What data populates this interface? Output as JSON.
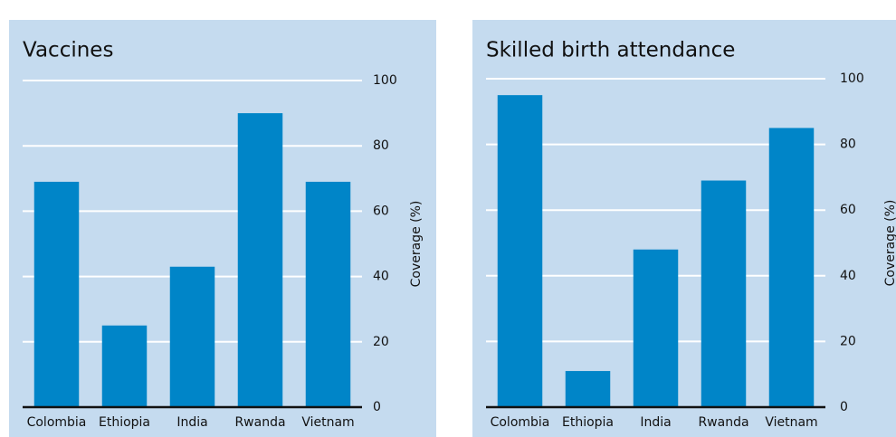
{
  "chart_data": [
    {
      "type": "bar",
      "title": "Vaccines",
      "y_label": "Coverage (%)",
      "categories": [
        "Colombia",
        "Ethiopia",
        "India",
        "Rwanda",
        "Vietnam"
      ],
      "values": [
        69,
        25,
        43,
        90,
        69
      ],
      "color": "#0085c8",
      "ylim": [
        0,
        100
      ],
      "yticks": [
        0,
        20,
        40,
        60,
        80,
        100
      ],
      "grid": true
    },
    {
      "type": "bar",
      "title": "Skilled birth attendance",
      "y_label": "Coverage (%)",
      "categories": [
        "Colombia",
        "Ethiopia",
        "India",
        "Rwanda",
        "Vietnam"
      ],
      "values": [
        95,
        11,
        48,
        69,
        85
      ],
      "color": "#0085c8",
      "ylim": [
        0,
        100
      ],
      "yticks": [
        0,
        20,
        40,
        60,
        80,
        100
      ],
      "grid": true
    }
  ]
}
